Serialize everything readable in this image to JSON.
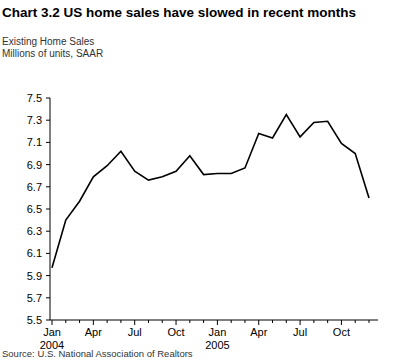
{
  "chart_data": {
    "type": "line",
    "title": "Chart 3.2 US home sales have slowed in recent months",
    "subtitle": "Existing Home Sales",
    "ylabel": "Millions of units, SAAR",
    "source": "Source: U.S. National Association of Realtors",
    "categories": [
      "Jan 2004",
      null,
      null,
      "Apr",
      null,
      null,
      "Jul",
      null,
      null,
      "Oct",
      null,
      null,
      "Jan 2005",
      null,
      null,
      "Apr",
      null,
      null,
      "Jul",
      null,
      null,
      "Oct",
      null,
      null
    ],
    "values": [
      5.97,
      6.4,
      6.57,
      6.79,
      6.89,
      7.02,
      6.84,
      6.76,
      6.79,
      6.84,
      6.98,
      6.81,
      6.82,
      6.82,
      6.87,
      7.18,
      7.14,
      7.35,
      7.15,
      7.28,
      7.29,
      7.09,
      7.0,
      6.6
    ],
    "color": "#000000",
    "ylim": [
      5.5,
      7.5
    ],
    "yticks": [
      5.5,
      5.7,
      5.9,
      6.1,
      6.3,
      6.5,
      6.7,
      6.9,
      7.1,
      7.3,
      7.5
    ],
    "grid": false
  }
}
